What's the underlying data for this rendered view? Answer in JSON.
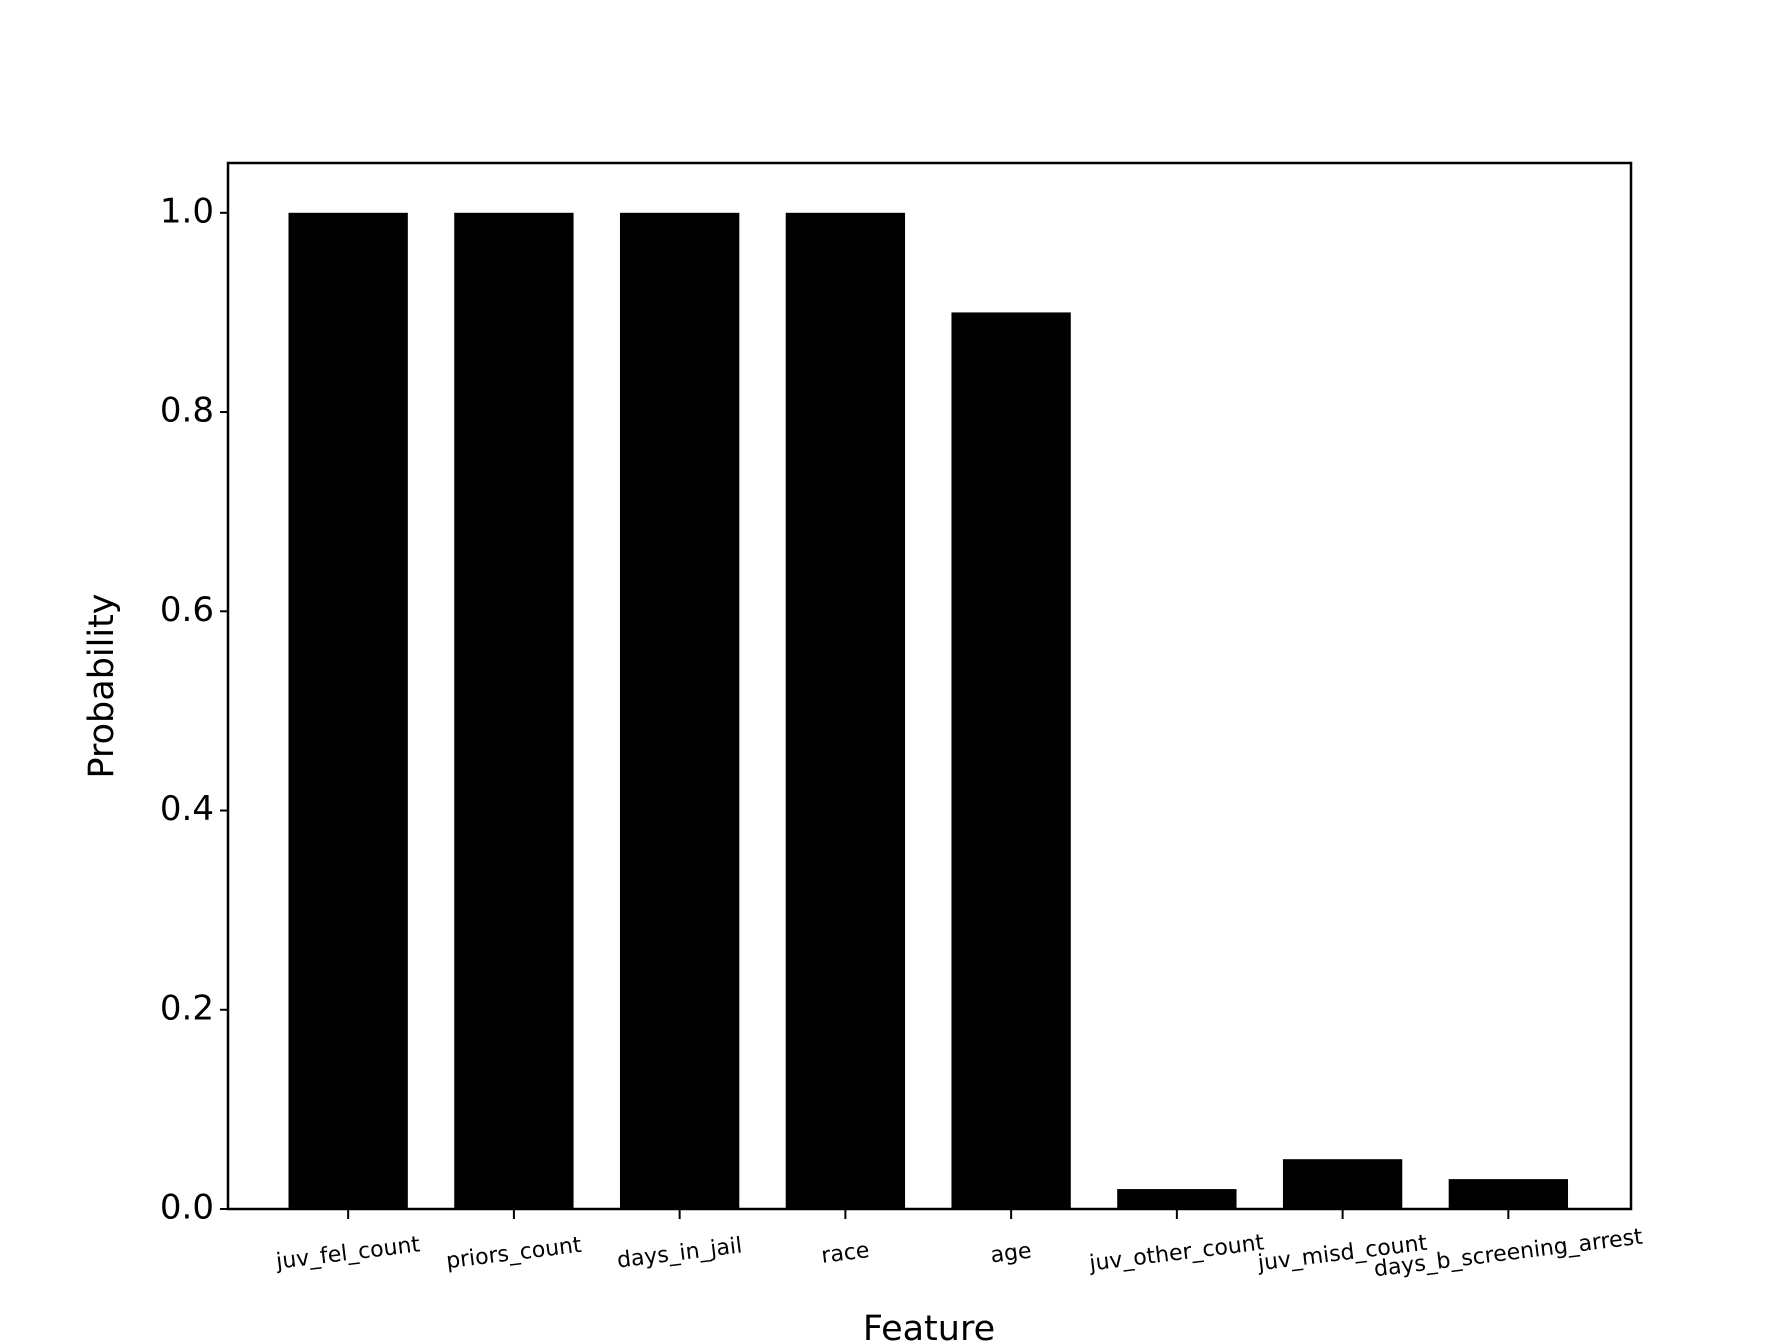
{
  "chart_data": {
    "type": "bar",
    "xlabel": "Feature",
    "ylabel": "Probability",
    "categories": [
      "juv_fel_count",
      "priors_count",
      "days_in_jail",
      "race",
      "age",
      "juv_other_count",
      "juv_misd_count",
      "days_b_screening_arrest"
    ],
    "values": [
      1.0,
      1.0,
      1.0,
      1.0,
      0.9,
      0.02,
      0.05,
      0.03
    ],
    "color": "#000000",
    "ylim": [
      0,
      1.05
    ],
    "yticks": [
      {
        "value": 0,
        "label": "0.0"
      },
      {
        "value": 0.2,
        "label": "0.2"
      },
      {
        "value": 0.4,
        "label": "0.4"
      },
      {
        "value": 0.6,
        "label": "0.6"
      },
      {
        "value": 0.8,
        "label": "0.8"
      },
      {
        "value": 1.0,
        "label": "1.0"
      }
    ],
    "grid": false
  }
}
